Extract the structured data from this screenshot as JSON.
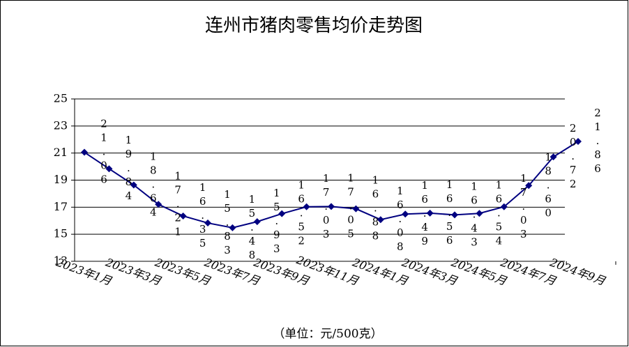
{
  "chart_data": {
    "type": "line",
    "title": "连州市猪肉零售均价走势图",
    "note": "（单位：元/500克）",
    "categories": [
      "2023年1月",
      null,
      "2023年3月",
      null,
      "2023年5月",
      null,
      "2023年7月",
      null,
      "2023年9月",
      null,
      "2023年11月",
      null,
      "2024年1月",
      null,
      "2024年3月",
      null,
      "2024年5月",
      null,
      "2024年7月",
      null,
      "2024年9月"
    ],
    "values": [
      21.06,
      19.84,
      18.64,
      17.21,
      16.35,
      15.83,
      15.48,
      15.93,
      16.52,
      17.03,
      17.05,
      16.88,
      16.08,
      16.49,
      16.56,
      16.43,
      16.54,
      17.03,
      18.6,
      20.72,
      21.86
    ],
    "value_labels": [
      "21.06",
      "19.84",
      "18.64",
      "17.21",
      "16.35",
      "15.83",
      "15.48",
      "15.93",
      "16.52",
      "17.03",
      "17.05",
      "16.88",
      "16.08",
      "16.49",
      "16.56",
      "16.43",
      "16.54",
      "17.03",
      "18.60",
      "20.72",
      "21.86"
    ],
    "color": "#000080",
    "ylim": [
      13,
      25
    ],
    "yticks": [
      13,
      15,
      17,
      19,
      21,
      23,
      25
    ],
    "grid": true
  }
}
